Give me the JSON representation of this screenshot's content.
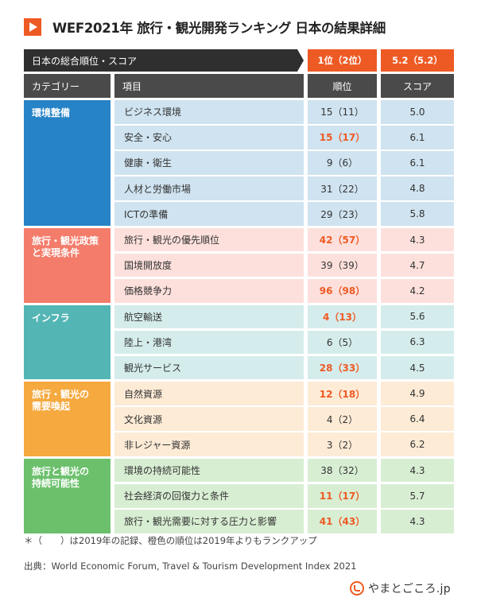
{
  "title": "WEF2021年 旅行・観光開発ランキング 日本の結果詳細",
  "overall": {
    "label": "日本の総合順位・スコア",
    "rank": "1位（2位）",
    "score": "5.2（5.2）"
  },
  "columns": {
    "category": "カテゴリー",
    "item": "項目",
    "rank": "順位",
    "score": "スコア"
  },
  "colors": {
    "accent": "#ee5a24",
    "header_dark": "#2f2f2f",
    "header_mid": "#4a4a4a"
  },
  "chart_data": {
    "type": "table",
    "groups": [
      {
        "category_lines": [
          "環境整備"
        ],
        "color": "#2683c6",
        "row_bg": "#cfe3f0",
        "rows": [
          {
            "item": "ビジネス環境",
            "rank": 15,
            "prev_rank": 11,
            "rank_text": "15（11）",
            "score": "5.0",
            "improved": false
          },
          {
            "item": "安全・安心",
            "rank": 15,
            "prev_rank": 17,
            "rank_text": "15（17）",
            "score": "6.1",
            "improved": true
          },
          {
            "item": "健康・衛生",
            "rank": 9,
            "prev_rank": 6,
            "rank_text": "9（6）",
            "score": "6.1",
            "improved": false
          },
          {
            "item": "人材と労働市場",
            "rank": 31,
            "prev_rank": 22,
            "rank_text": "31（22）",
            "score": "4.8",
            "improved": false
          },
          {
            "item": "ICTの準備",
            "rank": 29,
            "prev_rank": 23,
            "rank_text": "29（23）",
            "score": "5.8",
            "improved": false
          }
        ]
      },
      {
        "category_lines": [
          "旅行・観光政策",
          "と実現条件"
        ],
        "color": "#f47c6a",
        "row_bg": "#fde0dc",
        "rows": [
          {
            "item": "旅行・観光の優先順位",
            "rank": 42,
            "prev_rank": 57,
            "rank_text": "42（57）",
            "score": "4.3",
            "improved": true
          },
          {
            "item": "国境開放度",
            "rank": 39,
            "prev_rank": 39,
            "rank_text": "39（39）",
            "score": "4.7",
            "improved": false
          },
          {
            "item": "価格競争力",
            "rank": 96,
            "prev_rank": 98,
            "rank_text": "96（98）",
            "score": "4.2",
            "improved": true
          }
        ]
      },
      {
        "category_lines": [
          "インフラ"
        ],
        "color": "#54b5b5",
        "row_bg": "#d5ecec",
        "rows": [
          {
            "item": "航空輸送",
            "rank": 4,
            "prev_rank": 13,
            "rank_text": "4（13）",
            "score": "5.6",
            "improved": true
          },
          {
            "item": "陸上・港湾",
            "rank": 6,
            "prev_rank": 5,
            "rank_text": "6（5）",
            "score": "6.3",
            "improved": false
          },
          {
            "item": "観光サービス",
            "rank": 28,
            "prev_rank": 33,
            "rank_text": "28（33）",
            "score": "4.5",
            "improved": true
          }
        ]
      },
      {
        "category_lines": [
          "旅行・観光の",
          "需要喚起"
        ],
        "color": "#f5a93e",
        "row_bg": "#fdebd6",
        "rows": [
          {
            "item": "自然資源",
            "rank": 12,
            "prev_rank": 18,
            "rank_text": "12（18）",
            "score": "4.9",
            "improved": true
          },
          {
            "item": "文化資源",
            "rank": 4,
            "prev_rank": 2,
            "rank_text": "4（2）",
            "score": "6.4",
            "improved": false
          },
          {
            "item": "非レジャー資源",
            "rank": 3,
            "prev_rank": 2,
            "rank_text": "3（2）",
            "score": "6.2",
            "improved": false
          }
        ]
      },
      {
        "category_lines": [
          "旅行と観光の",
          "持続可能性"
        ],
        "color": "#6cc06c",
        "row_bg": "#d8eed3",
        "rows": [
          {
            "item": "環境の持続可能性",
            "rank": 38,
            "prev_rank": 32,
            "rank_text": "38（32）",
            "score": "4.3",
            "improved": false
          },
          {
            "item": "社会経済の回復力と条件",
            "rank": 11,
            "prev_rank": 17,
            "rank_text": "11（17）",
            "score": "5.7",
            "improved": true
          },
          {
            "item": "旅行・観光需要に対する圧力と影響",
            "rank": 41,
            "prev_rank": 43,
            "rank_text": "41（43）",
            "score": "4.3",
            "improved": true
          }
        ]
      }
    ]
  },
  "footnote": "＊（　　）は2019年の記録、橙色の順位は2019年よりもランクアップ",
  "source": "出典：World Economic Forum, Travel & Tourism Development Index 2021",
  "logo_text": "やまとごころ.jp"
}
